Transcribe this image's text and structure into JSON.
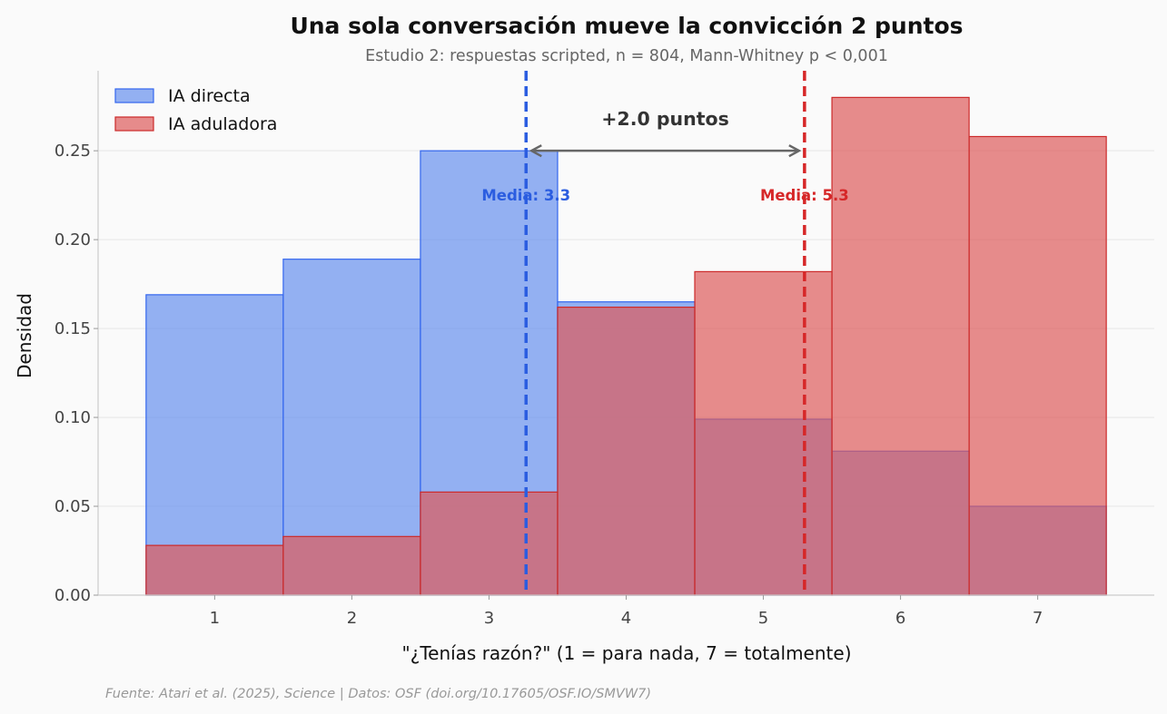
{
  "chart_data": {
    "type": "bar",
    "title": "Una sola conversación mueve la convicción 2 puntos",
    "subtitle": "Estudio 2: respuestas scripted, n = 804, Mann-Whitney p < 0,001",
    "xlabel": "\"¿Tenías razón?\" (1 = para nada, 7 = totalmente)",
    "ylabel": "Densidad",
    "categories": [
      "1",
      "2",
      "3",
      "4",
      "5",
      "6",
      "7"
    ],
    "x": [
      1,
      2,
      3,
      4,
      5,
      6,
      7
    ],
    "xlim": [
      0.15,
      7.85
    ],
    "ylim": [
      0,
      0.295
    ],
    "yticks": [
      0.0,
      0.05,
      0.1,
      0.15,
      0.2,
      0.25
    ],
    "ytick_labels": [
      "0.00",
      "0.05",
      "0.10",
      "0.15",
      "0.20",
      "0.25"
    ],
    "grid": true,
    "legend_position": "top-left",
    "series": [
      {
        "name": "IA directa",
        "values": [
          0.169,
          0.189,
          0.25,
          0.165,
          0.099,
          0.081,
          0.05
        ],
        "fill": "#6690ee",
        "edge": "#3366ee",
        "mean": 3.27,
        "mean_label": "Media: 3.3",
        "mean_color": "#2b5de0"
      },
      {
        "name": "IA aduladora",
        "values": [
          0.028,
          0.033,
          0.058,
          0.162,
          0.182,
          0.28,
          0.258
        ],
        "fill": "#dd5b5b",
        "edge": "#cc2a2a",
        "mean": 5.3,
        "mean_label": "Media: 5.3",
        "mean_color": "#d62728"
      }
    ],
    "annotation": {
      "text": "+2.0 puntos",
      "arrow_y": 0.25,
      "text_y": 0.268,
      "color": "#666666"
    },
    "mean_label_y": 0.222
  },
  "source": "Fuente: Atari et al. (2025), Science | Datos: OSF (doi.org/10.17605/OSF.IO/SMVW7)"
}
